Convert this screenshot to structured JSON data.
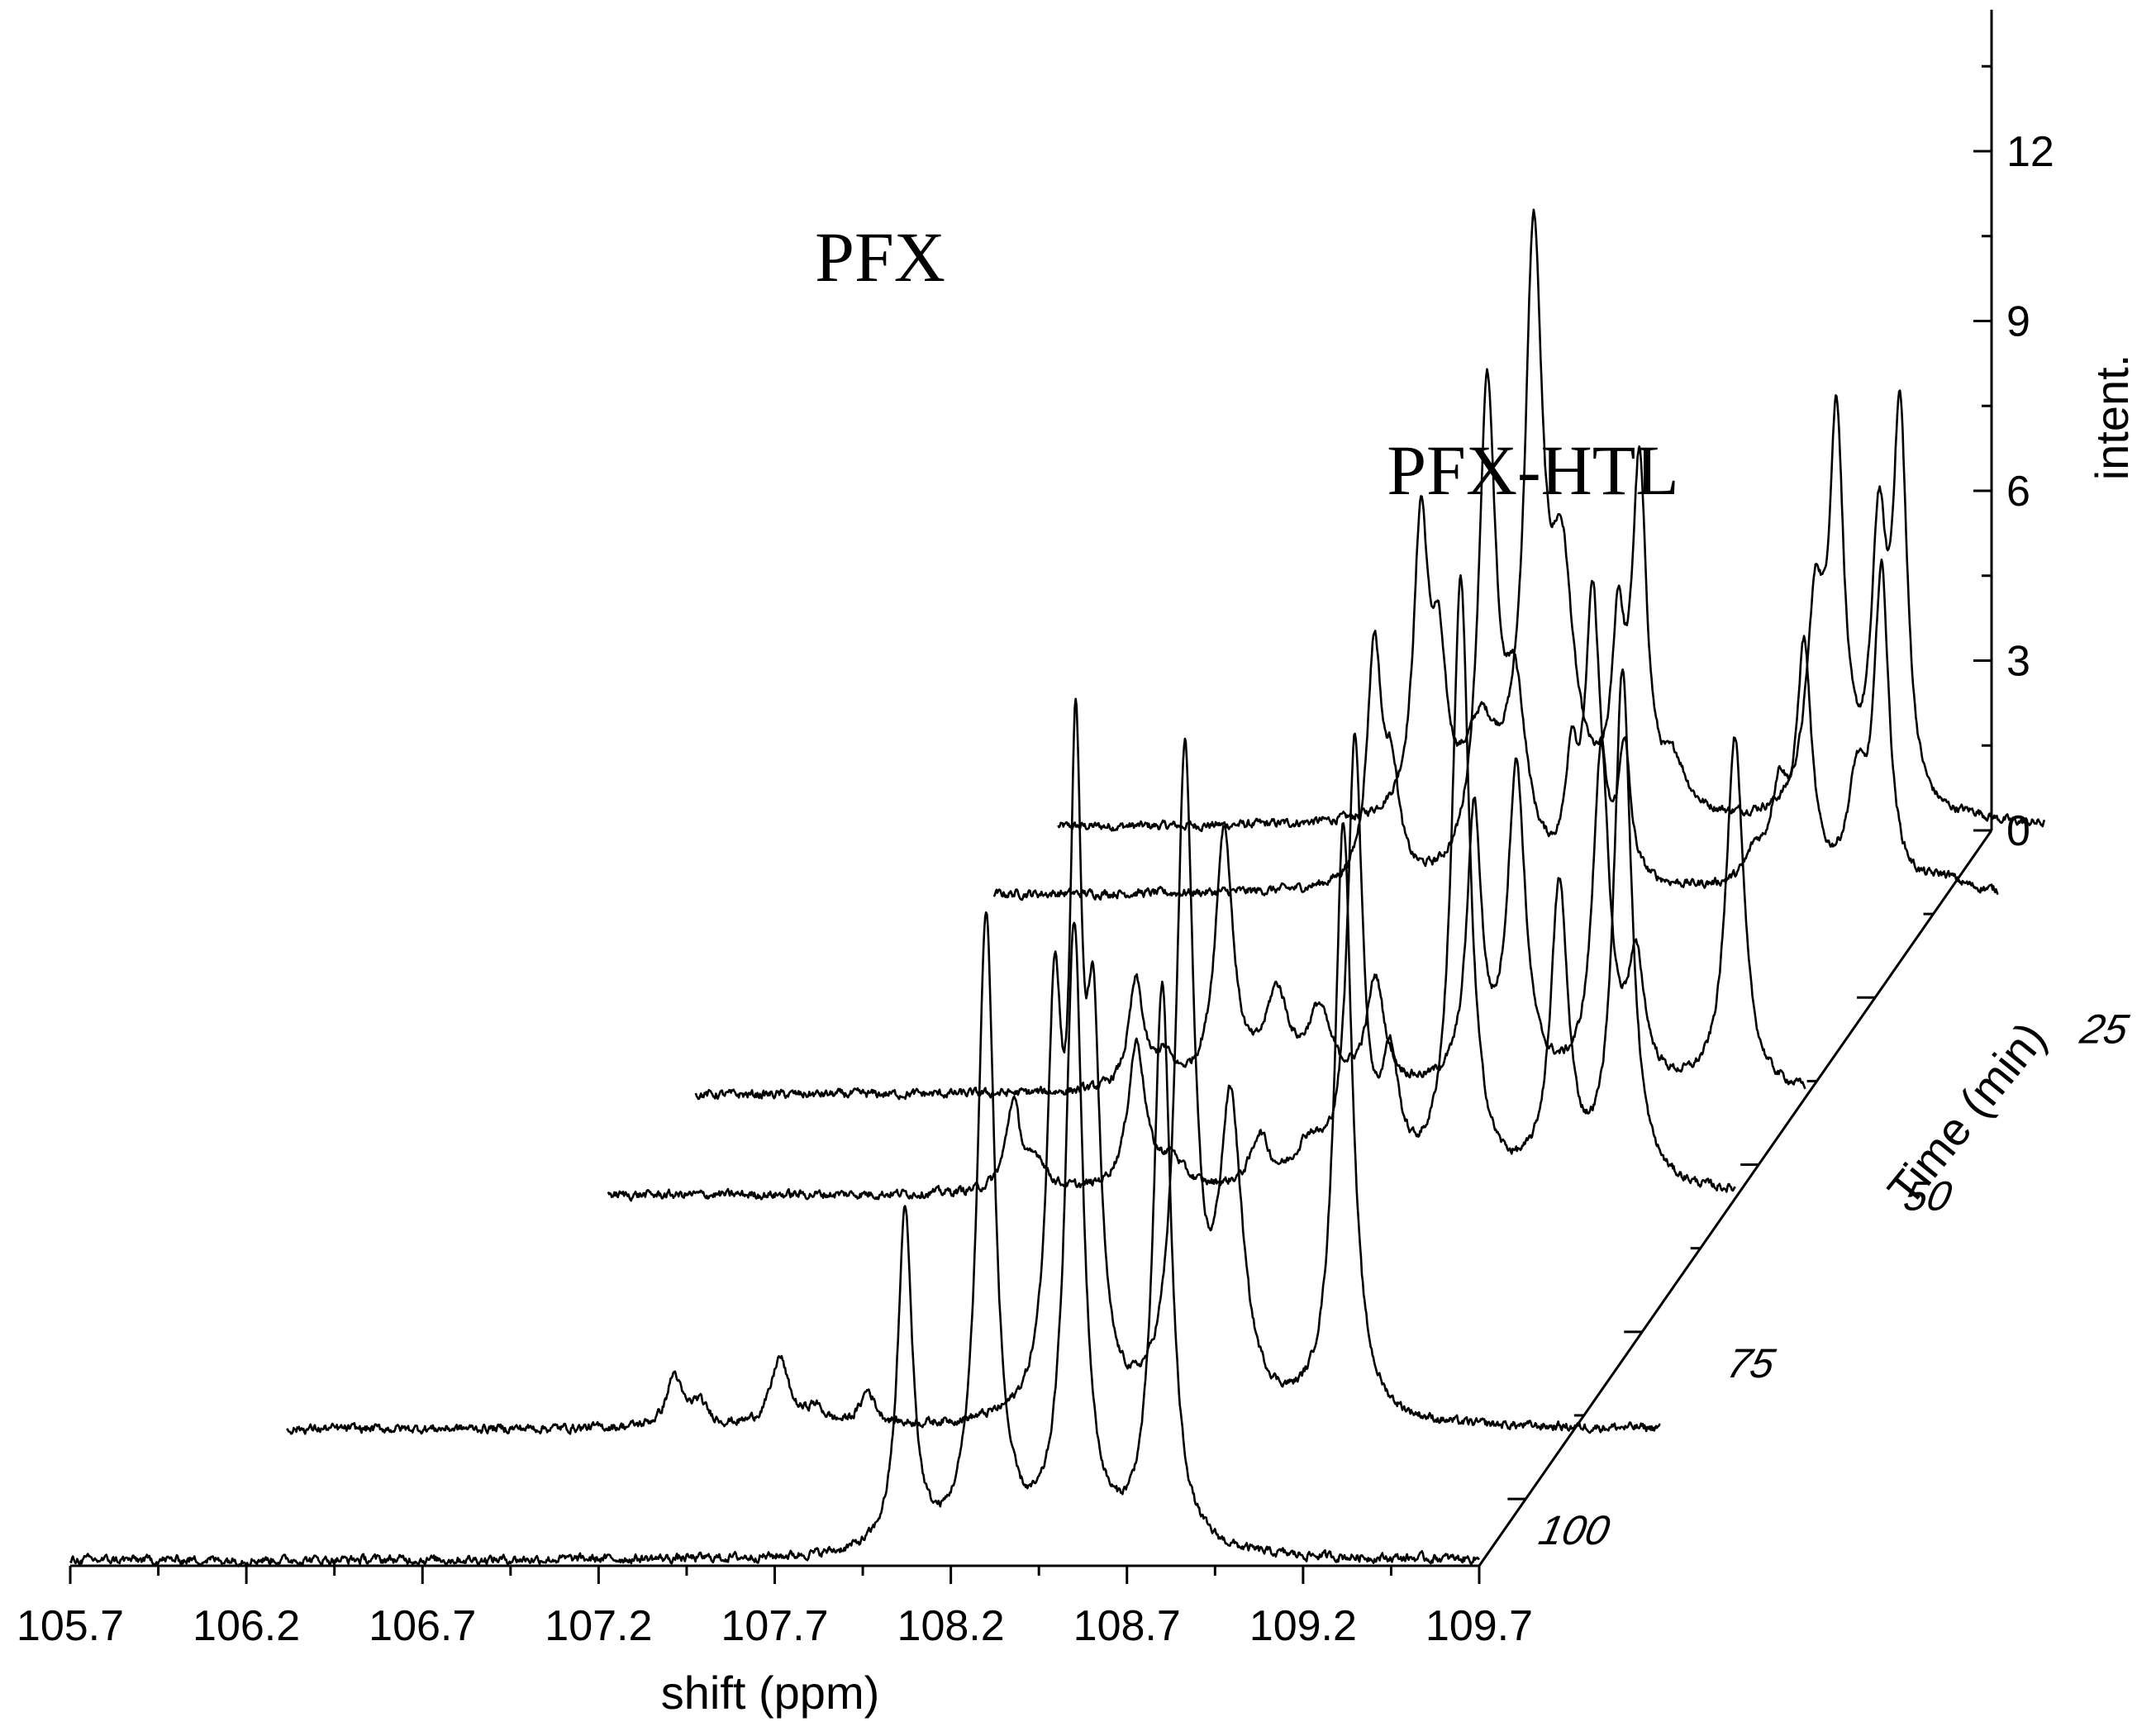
{
  "chart_data": {
    "type": "line",
    "subtype": "stacked-3d-waterfall-spectra",
    "xlabel": "shift (ppm)",
    "ylabel": "intent.",
    "zlabel": "Time (min)",
    "x_ticks": [
      "105.7",
      "106.2",
      "106.7",
      "107.2",
      "107.7",
      "108.2",
      "108.7",
      "109.2",
      "109.7"
    ],
    "x_range": [
      105.7,
      109.7
    ],
    "y_ticks": [
      "0",
      "3",
      "6",
      "9",
      "12"
    ],
    "y_range": [
      0,
      14.5
    ],
    "z_ticks": [
      "0",
      "25",
      "50",
      "75",
      "100"
    ],
    "z_range": [
      0,
      110
    ],
    "annotations": [
      "PFX",
      "PFX-HTL"
    ],
    "line_color": "#000000",
    "series": [
      {
        "time": 0,
        "x_range": [
          107.05,
          109.85
        ],
        "baseline": 0.05,
        "peaks": [
          [
            108.08,
            5.1,
            0.025
          ],
          [
            108.13,
            2.5,
            0.025
          ],
          [
            108.25,
            1.4,
            0.05
          ],
          [
            108.4,
            9.8,
            0.03
          ],
          [
            108.48,
            4.0,
            0.04
          ],
          [
            108.64,
            2.9,
            0.02
          ],
          [
            108.7,
            6.0,
            0.025
          ],
          [
            108.8,
            0.8,
            0.04
          ],
          [
            109.2,
            3.4,
            0.03
          ],
          [
            109.26,
            6.6,
            0.025
          ],
          [
            109.38,
            4.6,
            0.025
          ],
          [
            109.44,
            6.8,
            0.025
          ],
          [
            109.65,
            0.1,
            0.05
          ]
        ]
      },
      {
        "time": 10,
        "x_range": [
          107.0,
          109.85
        ],
        "baseline": 0.05,
        "peaks": [
          [
            108.08,
            4.2,
            0.025
          ],
          [
            108.13,
            1.7,
            0.025
          ],
          [
            108.4,
            8.5,
            0.03
          ],
          [
            108.48,
            3.0,
            0.04
          ],
          [
            108.64,
            1.9,
            0.02
          ],
          [
            108.7,
            5.0,
            0.025
          ],
          [
            108.79,
            2.3,
            0.02
          ],
          [
            109.16,
            0.5,
            0.03
          ],
          [
            109.23,
            1.6,
            0.03
          ],
          [
            109.3,
            4.1,
            0.025
          ],
          [
            109.45,
            1.7,
            0.03
          ],
          [
            109.52,
            5.5,
            0.025
          ],
          [
            109.7,
            0.2,
            0.05
          ]
        ]
      },
      {
        "time": 40,
        "x_range": [
          106.55,
          109.7
        ],
        "baseline": 0.05,
        "peaks": [
          [
            107.8,
            1.9,
            0.025
          ],
          [
            107.88,
            0.5,
            0.03
          ],
          [
            108.05,
            4.6,
            0.03
          ],
          [
            108.2,
            1.6,
            0.04
          ],
          [
            108.32,
            1.3,
            0.04
          ],
          [
            108.48,
            1.9,
            0.03
          ],
          [
            108.76,
            4.8,
            0.025
          ],
          [
            108.88,
            5.6,
            0.03
          ],
          [
            109.12,
            5.9,
            0.028
          ],
          [
            109.22,
            2.1,
            0.03
          ],
          [
            109.5,
            6.3,
            0.03
          ]
        ]
      },
      {
        "time": 55,
        "x_range": [
          106.5,
          109.7
        ],
        "baseline": 0.05,
        "peaks": [
          [
            107.65,
            1.6,
            0.025
          ],
          [
            107.72,
            0.5,
            0.03
          ],
          [
            108.0,
            2.6,
            0.03
          ],
          [
            108.1,
            0.5,
            0.04
          ],
          [
            108.35,
            0.9,
            0.03
          ],
          [
            108.49,
            0.7,
            0.05
          ],
          [
            108.62,
            7.8,
            0.025
          ],
          [
            108.72,
            2.0,
            0.03
          ],
          [
            108.92,
            10.7,
            0.03
          ],
          [
            109.2,
            5.2,
            0.03
          ],
          [
            109.38,
            9.1,
            0.03
          ]
        ]
      },
      {
        "time": 90,
        "x_range": [
          106.05,
          109.95
        ],
        "baseline": 0.05,
        "peaks": [
          [
            107.15,
            0.9,
            0.025
          ],
          [
            107.22,
            0.4,
            0.03
          ],
          [
            107.45,
            1.2,
            0.03
          ],
          [
            107.55,
            0.3,
            0.03
          ],
          [
            107.7,
            0.6,
            0.025
          ],
          [
            108.23,
            7.0,
            0.025
          ],
          [
            108.29,
            10.5,
            0.02
          ],
          [
            108.34,
            6.1,
            0.025
          ],
          [
            108.6,
            11.5,
            0.03
          ],
          [
            108.73,
            5.3,
            0.04
          ],
          [
            109.05,
            10.6,
            0.03
          ]
        ]
      },
      {
        "time": 110,
        "x_range": [
          105.7,
          109.7
        ],
        "baseline": 0.1,
        "peaks": [
          [
            108.07,
            6.0,
            0.025
          ],
          [
            108.3,
            11.2,
            0.03
          ],
          [
            108.55,
            11.0,
            0.03
          ],
          [
            108.8,
            10.0,
            0.03
          ]
        ]
      }
    ]
  }
}
